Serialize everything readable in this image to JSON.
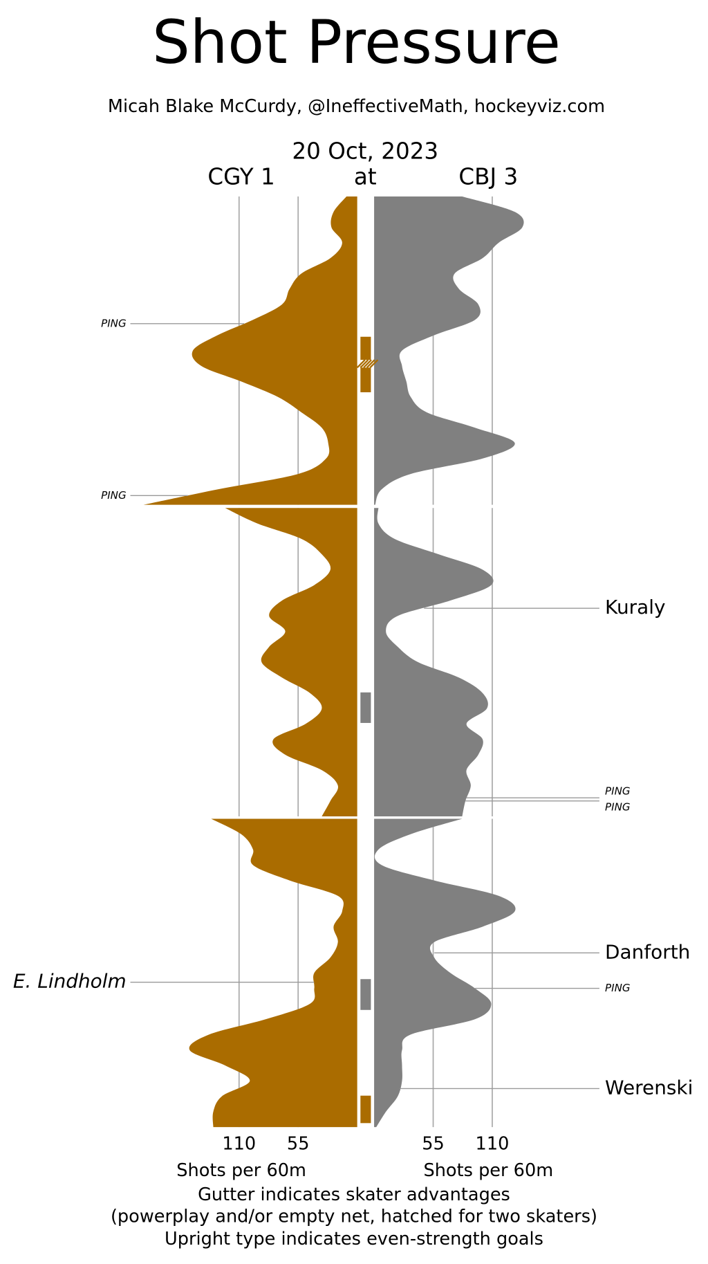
{
  "title": "Shot Pressure",
  "subtitle": "Micah Blake McCurdy, @IneffectiveMath, hockeyviz.com",
  "chart_data": {
    "type": "shot-pressure",
    "date": "20 Oct, 2023",
    "away_label": "CGY 1",
    "at_label": "at",
    "home_label": "CBJ 3",
    "xlabel_away": "Shots per 60m",
    "xlabel_home": "Shots per 60m",
    "xlim": [
      0,
      200
    ],
    "xticks": [
      55,
      110
    ],
    "grid": true,
    "x": [
      0,
      1,
      2,
      3,
      4,
      5,
      6,
      7,
      8,
      9,
      10,
      11,
      12,
      13,
      14,
      15,
      16,
      17,
      18,
      19,
      20
    ],
    "series": [
      {
        "side": "left",
        "color": "#aa6c00",
        "periods": [
          [
            10,
            22,
            24,
            14,
            25,
            52,
            63,
            70,
            97,
            130,
            153,
            145,
            108,
            74,
            52,
            33,
            27,
            29,
            55,
            130,
            199
          ],
          [
            123,
            93,
            52,
            33,
            25,
            40,
            70,
            82,
            67,
            82,
            89,
            70,
            44,
            33,
            48,
            78,
            67,
            33,
            18,
            25,
            33
          ],
          [
            136,
            108,
            97,
            97,
            63,
            18,
            14,
            22,
            18,
            25,
            40,
            40,
            44,
            85,
            138,
            156,
            123,
            100,
            126,
            134,
            134
          ]
        ]
      },
      {
        "side": "right",
        "color": "#808080",
        "periods": [
          [
            82,
            131,
            138,
            116,
            101,
            75,
            79,
            97,
            94,
            56,
            26,
            26,
            30,
            34,
            49,
            94,
            131,
            101,
            34,
            7,
            1
          ],
          [
            4,
            4,
            19,
            60,
            101,
            109,
            71,
            22,
            11,
            22,
            41,
            79,
            101,
            105,
            86,
            101,
            97,
            86,
            90,
            85,
            82
          ],
          [
            82,
            34,
            4,
            7,
            56,
            116,
            131,
            101,
            56,
            56,
            71,
            94,
            109,
            94,
            34,
            26,
            26,
            26,
            22,
            11,
            2
          ]
        ]
      }
    ],
    "annotations": [
      {
        "label": "PING",
        "minute": 8.25,
        "side": "left",
        "style": "ping"
      },
      {
        "label": "PING",
        "minute": 19.4,
        "side": "left",
        "style": "ping"
      },
      {
        "label": "Kuraly",
        "minute": 26.5,
        "side": "right",
        "style": "even-strength"
      },
      {
        "label": "PING",
        "minute": 38.8,
        "side": "right",
        "style": "ping"
      },
      {
        "label": "PING",
        "minute": 39.0,
        "side": "right",
        "style": "ping"
      },
      {
        "label": "Danforth",
        "minute": 48.7,
        "side": "right",
        "style": "even-strength"
      },
      {
        "label": "E. Lindholm",
        "minute": 50.6,
        "side": "left",
        "style": "special-teams"
      },
      {
        "label": "PING",
        "minute": 51.0,
        "side": "right",
        "style": "ping"
      },
      {
        "label": "Werenski",
        "minute": 57.5,
        "side": "right",
        "style": "even-strength"
      }
    ],
    "gutter": [
      {
        "start": 9.1,
        "end": 12.7,
        "color": "#aa6c00",
        "hatch": [
          10.6,
          11.1
        ]
      },
      {
        "start": 31.96,
        "end": 33.94,
        "color": "#808080"
      },
      {
        "start": 50.4,
        "end": 52.4,
        "color": "#808080"
      },
      {
        "start": 57.96,
        "end": 59.74,
        "color": "#aa6c00"
      }
    ],
    "footnotes": [
      "Gutter indicates skater advantages",
      "(powerplay and/or empty net, hatched for two skaters)",
      "Upright type indicates even-strength goals"
    ]
  }
}
